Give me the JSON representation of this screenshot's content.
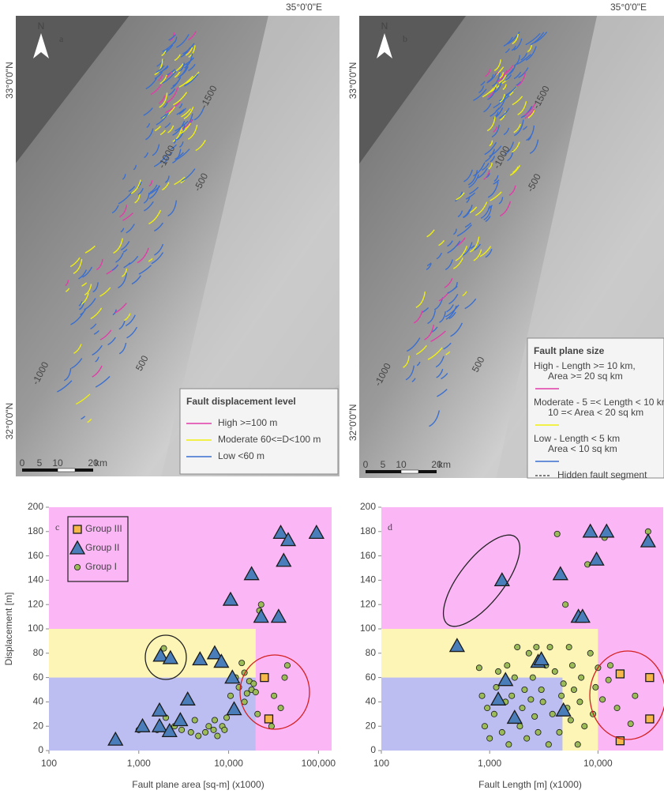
{
  "maps": [
    {
      "panel": "a",
      "north": "N",
      "lon": "35°0'0\"E",
      "lat": [
        "33°0'0\"N",
        "32°0'0\"N"
      ],
      "contours": [
        "-1500",
        "-1000",
        "-500",
        "500",
        "-1000"
      ],
      "scale": [
        "0",
        "5",
        "10",
        "20",
        "km"
      ],
      "legend": {
        "title": "Fault displacement level",
        "items": [
          {
            "label": [
              "High >=100 m"
            ],
            "color": "#e23ca8"
          },
          {
            "label": [
              "Moderate  60<=D<100 m"
            ],
            "color": "#eeee10"
          },
          {
            "label": [
              "Low <60 m"
            ],
            "color": "#3a6fd0"
          }
        ]
      }
    },
    {
      "panel": "b",
      "north": "N",
      "lon": "35°0'0\"E",
      "lat": [
        "33°0'0\"N",
        "32°0'0\"N"
      ],
      "contours": [
        "-1500",
        "-1000",
        "-500",
        "500",
        "-1000"
      ],
      "scale": [
        "0",
        "5",
        "10",
        "20",
        "km"
      ],
      "legend": {
        "title": "Fault plane size",
        "items": [
          {
            "label": [
              "High - Length >= 10 km,",
              "Area >= 20 sq km"
            ],
            "color": "#e23ca8"
          },
          {
            "label": [
              "Moderate - 5 =< Length < 10 km,",
              "10 =< Area < 20 sq km"
            ],
            "color": "#eeee10"
          },
          {
            "label": [
              "Low - Length < 5 km",
              "Area < 10 sq km"
            ],
            "color": "#3a6fd0"
          },
          {
            "label": [
              "Hidden fault segment"
            ],
            "color": "#555555",
            "dashed": true
          }
        ]
      }
    }
  ],
  "chart_data": [
    {
      "type": "scatter",
      "panel_label": "c",
      "x_label": "Fault plane area [sq-m]  (x1000)",
      "y_label": "Displacement [m]",
      "xscale": "log",
      "xlim": [
        100,
        140000
      ],
      "ylim": [
        0,
        200
      ],
      "xticks": [
        100,
        {
          "value": 1000,
          "label": "1,000"
        },
        {
          "value": 10000,
          "label": "10,000"
        },
        {
          "value": 100000,
          "label": "100,000"
        }
      ],
      "yticks": [
        0,
        20,
        40,
        60,
        80,
        100,
        120,
        140,
        160,
        180,
        200
      ],
      "background": "#fbb6f6",
      "regions": [
        {
          "xlim": [
            100,
            20000
          ],
          "ylim": [
            0,
            100
          ],
          "color": "#fdf5b5"
        },
        {
          "xlim": [
            100,
            20000
          ],
          "ylim": [
            0,
            60
          ],
          "color": "#bcbdf0"
        }
      ],
      "legend": "upper left",
      "series": [
        {
          "name": "Group III",
          "marker": "square",
          "color": "#f7b84a",
          "x": [
            25000,
            28000
          ],
          "values": [
            60,
            26
          ]
        },
        {
          "name": "Group II",
          "marker": "triangle",
          "color": "#4a7ebb",
          "x": [
            550,
            1100,
            1700,
            1700,
            1750,
            2200,
            2250,
            2900,
            3500,
            4800,
            7000,
            8300,
            10500,
            11000,
            11500,
            18000,
            23000,
            36000,
            38000,
            41000,
            46000,
            95000
          ],
          "values": [
            9,
            20,
            20,
            33,
            78,
            16,
            76,
            25,
            42,
            75,
            80,
            73,
            124,
            60,
            34,
            145,
            110,
            110,
            179,
            156,
            173,
            179
          ]
        },
        {
          "name": "Group I",
          "marker": "circle",
          "color": "#9bbb59",
          "x": [
            1000,
            1600,
            2000,
            2500,
            3000,
            3800,
            4200,
            4600,
            5500,
            6000,
            6800,
            7000,
            7500,
            8500,
            9000,
            9500,
            10500,
            12000,
            13000,
            14000,
            15000,
            15000,
            16000,
            17000,
            18000,
            19000,
            20000,
            21000,
            22000,
            23000,
            30000,
            32000,
            38000,
            42000,
            45000,
            1900
          ],
          "values": [
            17,
            17,
            27,
            20,
            17,
            15,
            25,
            12,
            15,
            20,
            17,
            25,
            12,
            20,
            17,
            27,
            45,
            60,
            52,
            72,
            64,
            40,
            47,
            57,
            50,
            55,
            48,
            30,
            115,
            120,
            20,
            45,
            35,
            60,
            70,
            84
          ]
        }
      ]
    },
    {
      "type": "scatter",
      "panel_label": "d",
      "x_label": "Fault Length [m]  (x1000)",
      "xscale": "log",
      "xlim": [
        100,
        40000
      ],
      "ylim": [
        0,
        200
      ],
      "xticks": [
        100,
        {
          "value": 1000,
          "label": "1,000"
        },
        {
          "value": 10000,
          "label": "10,000"
        }
      ],
      "yticks": [
        0,
        20,
        40,
        60,
        80,
        100,
        120,
        140,
        160,
        180,
        200
      ],
      "background": "#fbb6f6",
      "regions": [
        {
          "xlim": [
            100,
            10000
          ],
          "ylim": [
            0,
            100
          ],
          "color": "#fdf5b5"
        },
        {
          "xlim": [
            100,
            4700
          ],
          "ylim": [
            0,
            60
          ],
          "color": "#bcbdf0"
        }
      ],
      "series": [
        {
          "marker": "square",
          "color": "#f7b84a",
          "x": [
            16000,
            16000,
            30000,
            30000
          ],
          "values": [
            63,
            8,
            60,
            26
          ]
        },
        {
          "marker": "triangle",
          "color": "#4a7ebb",
          "x": [
            500,
            1200,
            1300,
            1400,
            1700,
            2800,
            3000,
            4500,
            4800,
            6600,
            7200,
            8500,
            9700,
            12000,
            29000
          ],
          "values": [
            86,
            42,
            140,
            58,
            27,
            73,
            75,
            145,
            33,
            110,
            110,
            180,
            157,
            180,
            172
          ]
        },
        {
          "marker": "circle",
          "color": "#9bbb59",
          "x": [
            800,
            850,
            900,
            950,
            1000,
            1100,
            1150,
            1200,
            1300,
            1400,
            1450,
            1500,
            1600,
            1700,
            1800,
            1900,
            2000,
            2100,
            2200,
            2300,
            2400,
            2500,
            2600,
            2700,
            2800,
            3000,
            3100,
            3300,
            3500,
            3600,
            3800,
            4000,
            4200,
            4400,
            4600,
            4800,
            5000,
            5200,
            5400,
            5600,
            5800,
            6000,
            6500,
            6800,
            7000,
            7500,
            8000,
            8500,
            9000,
            9500,
            10000,
            11000,
            11500,
            12500,
            13000,
            15000,
            20000,
            22000,
            29000
          ],
          "values": [
            68,
            45,
            20,
            35,
            10,
            30,
            52,
            65,
            15,
            40,
            70,
            5,
            45,
            60,
            85,
            20,
            35,
            50,
            10,
            80,
            42,
            60,
            28,
            85,
            15,
            50,
            40,
            70,
            5,
            85,
            30,
            65,
            178,
            15,
            45,
            55,
            120,
            35,
            85,
            25,
            70,
            50,
            5,
            40,
            60,
            20,
            153,
            80,
            30,
            52,
            68,
            42,
            175,
            58,
            70,
            35,
            22,
            45,
            180
          ]
        }
      ]
    }
  ]
}
